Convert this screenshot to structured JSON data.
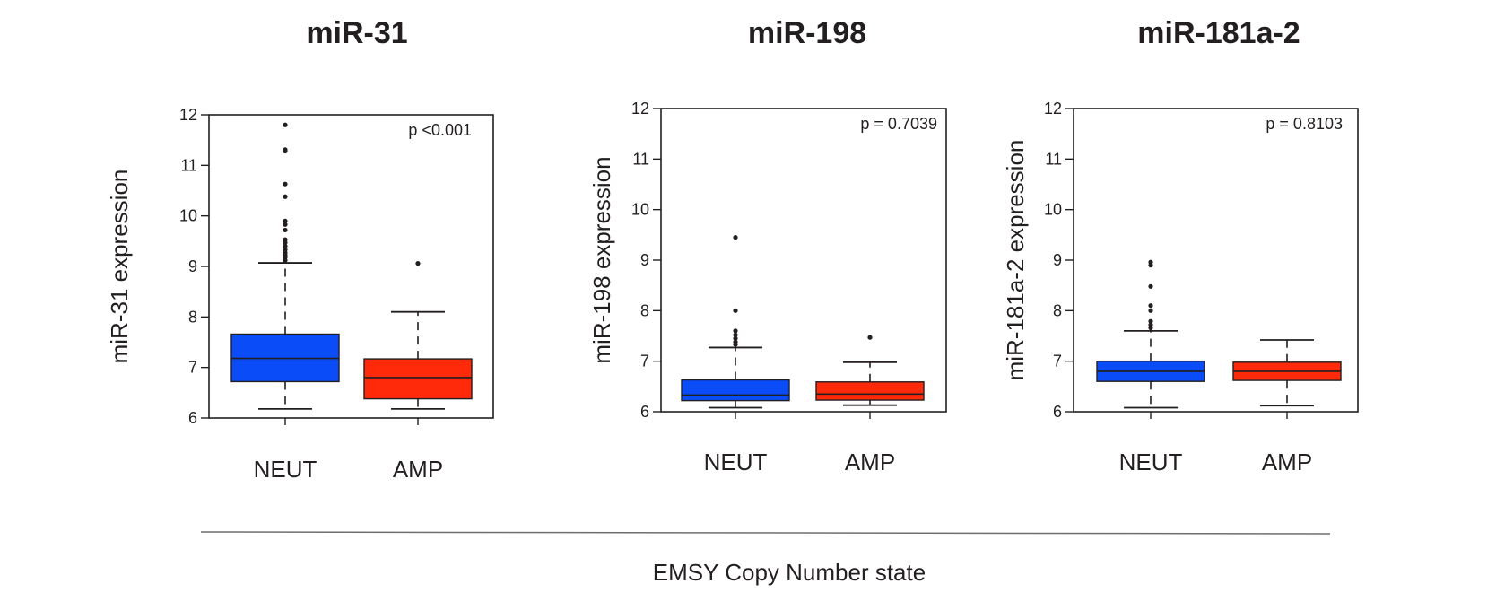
{
  "figure": {
    "xlabel": "EMSY Copy Number state"
  },
  "colors": {
    "NEUT": "#0a4cf8",
    "AMP": "#ff2a0a",
    "ink": "#231f20",
    "divider": "#6d6e71"
  },
  "chart_data": [
    {
      "type": "box",
      "title": "miR-31",
      "ylabel": "miR-31 expression",
      "annotation": "p <0.001",
      "ylim": [
        6,
        12
      ],
      "yticks": [
        6,
        7,
        8,
        9,
        10,
        11,
        12
      ],
      "categories": [
        "NEUT",
        "AMP"
      ],
      "boxes": [
        {
          "category": "NEUT",
          "whisker_low": 6.18,
          "q1": 6.72,
          "median": 7.18,
          "q3": 7.66,
          "whisker_high": 9.07,
          "outliers": [
            9.12,
            9.18,
            9.22,
            9.27,
            9.33,
            9.4,
            9.47,
            9.53,
            9.72,
            9.83,
            9.9,
            10.38,
            10.63,
            11.28,
            11.31,
            11.8
          ]
        },
        {
          "category": "AMP",
          "whisker_low": 6.18,
          "q1": 6.38,
          "median": 6.8,
          "q3": 7.17,
          "whisker_high": 8.1,
          "outliers": [
            9.06
          ]
        }
      ]
    },
    {
      "type": "box",
      "title": "miR-198",
      "ylabel": "miR-198 expression",
      "annotation": "p = 0.7039",
      "ylim": [
        6,
        12
      ],
      "yticks": [
        6,
        7,
        8,
        9,
        10,
        11,
        12
      ],
      "categories": [
        "NEUT",
        "AMP"
      ],
      "boxes": [
        {
          "category": "NEUT",
          "whisker_low": 6.08,
          "q1": 6.22,
          "median": 6.33,
          "q3": 6.63,
          "whisker_high": 7.27,
          "outliers": [
            7.33,
            7.38,
            7.45,
            7.52,
            7.6,
            8.0,
            9.45
          ]
        },
        {
          "category": "AMP",
          "whisker_low": 6.13,
          "q1": 6.23,
          "median": 6.35,
          "q3": 6.59,
          "whisker_high": 6.98,
          "outliers": [
            7.47
          ]
        }
      ]
    },
    {
      "type": "box",
      "title": "miR-181a-2",
      "ylabel": "miR-181a-2 expression",
      "annotation": "p = 0.8103",
      "ylim": [
        6,
        12
      ],
      "yticks": [
        6,
        7,
        8,
        9,
        10,
        11,
        12
      ],
      "categories": [
        "NEUT",
        "AMP"
      ],
      "boxes": [
        {
          "category": "NEUT",
          "whisker_low": 6.08,
          "q1": 6.6,
          "median": 6.8,
          "q3": 7.0,
          "whisker_high": 7.6,
          "outliers": [
            7.66,
            7.72,
            7.79,
            8.0,
            8.1,
            8.48,
            8.9,
            8.96
          ]
        },
        {
          "category": "AMP",
          "whisker_low": 6.12,
          "q1": 6.62,
          "median": 6.8,
          "q3": 6.98,
          "whisker_high": 7.42,
          "outliers": []
        }
      ]
    }
  ]
}
